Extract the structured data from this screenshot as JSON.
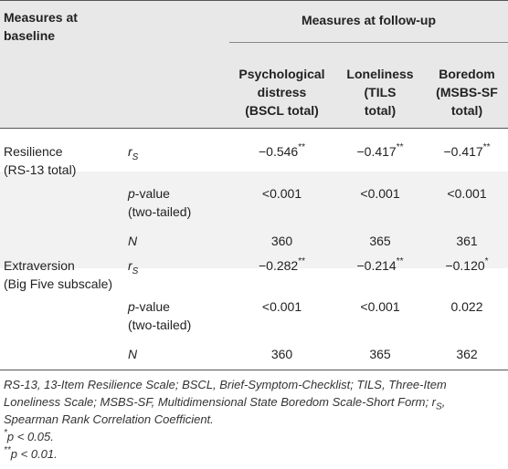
{
  "header": {
    "left": [
      "Measures at",
      "baseline"
    ],
    "group": "Measures at follow-up",
    "columns": [
      [
        "Psychological",
        "distress",
        "(BSCL total)"
      ],
      [
        "Loneliness",
        "(TILS",
        "total)"
      ],
      [
        "Boredom",
        "(MSBS-SF",
        "total)"
      ]
    ]
  },
  "blocks": [
    {
      "measure": [
        "Resilience",
        "(RS-13 total)"
      ],
      "rs_label": "r",
      "rs_sub": "S",
      "rs": [
        {
          "v": "−0.546",
          "s": "**"
        },
        {
          "v": "−0.417",
          "s": "**"
        },
        {
          "v": "−0.417",
          "s": "**"
        }
      ],
      "p_label": [
        "-value",
        "(two-tailed)"
      ],
      "p_italic": "p",
      "p": [
        "<0.001",
        "<0.001",
        "<0.001"
      ],
      "n_label": "N",
      "n": [
        "360",
        "365",
        "361"
      ]
    },
    {
      "measure": [
        "Extraversion",
        "(Big Five subscale)"
      ],
      "rs_label": "r",
      "rs_sub": "S",
      "rs": [
        {
          "v": "−0.282",
          "s": "**"
        },
        {
          "v": "−0.214",
          "s": "**"
        },
        {
          "v": "−0.120",
          "s": "*"
        }
      ],
      "p_label": [
        "-value",
        "(two-tailed)"
      ],
      "p_italic": "p",
      "p": [
        "<0.001",
        "<0.001",
        "0.022"
      ],
      "n_label": "N",
      "n": [
        "360",
        "365",
        "362"
      ]
    }
  ],
  "notes": {
    "line1": "RS-13, 13-Item Resilience Scale; BSCL, Brief-Symptom-Checklist; TILS, Three-Item",
    "line2": "Loneliness Scale; MSBS-SF, Multidimensional State Boredom Scale-Short Form; r",
    "line2_sub": "S",
    "line2_end": ",",
    "line3": "Spearman Rank Correlation Coefficient.",
    "fn1_mark": "*",
    "fn1": "p < 0.05.",
    "fn2_mark": "**",
    "fn2": "p < 0.01."
  }
}
